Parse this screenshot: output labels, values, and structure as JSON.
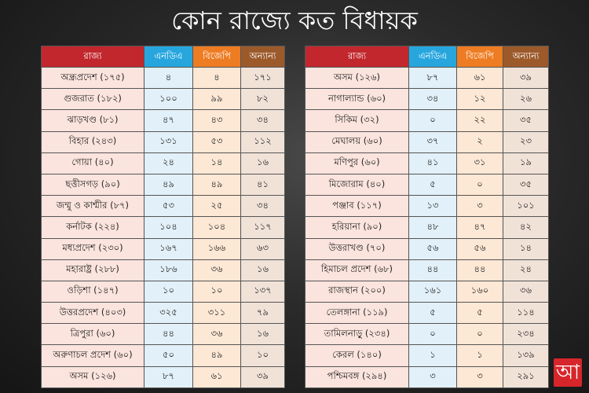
{
  "title": "কোন রাজ্যে কত বিধায়ক",
  "tables": [
    {
      "header": [
        "রাজ্য",
        "এনডিএ",
        "বিজেপি",
        "অন্যান্য"
      ],
      "rows": [
        [
          "অন্ধ্রপ্রদেশ (১৭৫)",
          "৪",
          "৪",
          "১৭১"
        ],
        [
          "গুজরাত (১৮২)",
          "১০০",
          "৯৯",
          "৮২"
        ],
        [
          "ঝাড়খণ্ড (৮১)",
          "৪৭",
          "৪৩",
          "৩৪"
        ],
        [
          "বিহার (২৪৩)",
          "১৩১",
          "৫৩",
          "১১২"
        ],
        [
          "গোয়া (৪০)",
          "২৪",
          "১৪",
          "১৬"
        ],
        [
          "ছত্তীসগড় (৯০)",
          "৪৯",
          "৪৯",
          "৪১"
        ],
        [
          "জম্মু ও কাশ্মীর (৮৭)",
          "৫৩",
          "২৫",
          "৩৪"
        ],
        [
          "কর্নাটক (২২৪)",
          "১০৪",
          "১০৪",
          "১১৭"
        ],
        [
          "মধ্যপ্রদেশ (২৩০)",
          "১৬৭",
          "১৬৬",
          "৬৩"
        ],
        [
          "মহারাষ্ট্র (২৮৮)",
          "১৮৬",
          "৩৬",
          "১৬"
        ],
        [
          "ওড়িশা (১৪৭)",
          "১০",
          "১০",
          "১৩৭"
        ],
        [
          "উত্তরপ্রদেশ (৪০৩)",
          "৩২৫",
          "৩১১",
          "৭৯"
        ],
        [
          "ত্রিপুরা (৬০)",
          "৪৪",
          "৩৬",
          "১৬"
        ],
        [
          "অরুণাচল প্রদেশ (৬০)",
          "৫০",
          "৪৯",
          "১০"
        ],
        [
          "অসম (১২৬)",
          "৮৭",
          "৬১",
          "৩৯"
        ]
      ]
    },
    {
      "header": [
        "রাজ্য",
        "এনডিএ",
        "বিজেপি",
        "অন্যান্য"
      ],
      "rows": [
        [
          "অসম (১২৬)",
          "৮৭",
          "৬১",
          "৩৯"
        ],
        [
          "নাগাল্যান্ড (৬০)",
          "৩৪",
          "১২",
          "২৬"
        ],
        [
          "সিকিম (৩২)",
          "০",
          "২২",
          "৩৫"
        ],
        [
          "মেঘালয় (৬০)",
          "৩৭",
          "২",
          "২৩"
        ],
        [
          "মণিপুর (৬০)",
          "৪১",
          "৩১",
          "১৯"
        ],
        [
          "মিজোরাম (৪০)",
          "৫",
          "০",
          "৩৫"
        ],
        [
          "পঞ্জাব (১১৭)",
          "১৩",
          "৩",
          "১০১"
        ],
        [
          "হরিয়ানা (৯০)",
          "৪৮",
          "৪৭",
          "৪২"
        ],
        [
          "উত্তরাখণ্ড (৭০)",
          "৫৬",
          "৫৬",
          "১৪"
        ],
        [
          "হিমাচল প্রদেশ (৬৮)",
          "৪৪",
          "৪৪",
          "২৪"
        ],
        [
          "রাজস্থান (২০০)",
          "১৬১",
          "১৬০",
          "৩৬"
        ],
        [
          "তেলঙ্গানা (১১৯)",
          "৫",
          "৫",
          "১১৪"
        ],
        [
          "তামিলনাড়ু (২৩৪)",
          "০",
          "০",
          "২৩৪"
        ],
        [
          "কেরল (১৪০)",
          "১",
          "১",
          "১৩৯"
        ],
        [
          "পশ্চিমবঙ্গ (২৯৪)",
          "৩",
          "৩",
          "২৯১"
        ]
      ]
    }
  ],
  "logo": "আ"
}
